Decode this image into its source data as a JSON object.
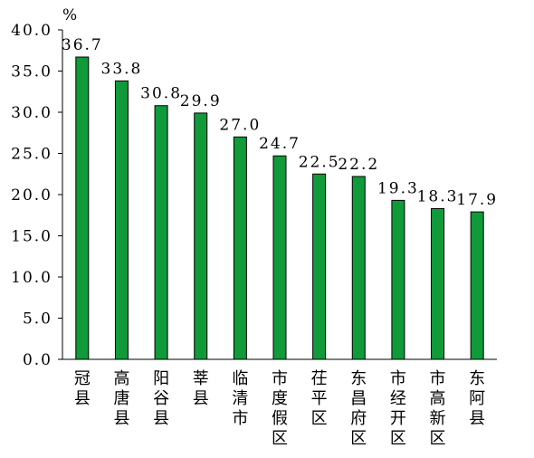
{
  "chart_data": {
    "type": "bar",
    "unit": "%",
    "categories": [
      "冠县",
      "高唐县",
      "阳谷县",
      "莘县",
      "临清市",
      "市度假区",
      "茌平区",
      "东昌府区",
      "市经开区",
      "市高新区",
      "东阿县"
    ],
    "values": [
      36.7,
      33.8,
      30.8,
      29.9,
      27.0,
      24.7,
      22.5,
      22.2,
      19.3,
      18.3,
      17.9
    ],
    "value_labels": [
      "36.7",
      "33.8",
      "30.8",
      "29.9",
      "27.0",
      "24.7",
      "22.5",
      "22.2",
      "19.3",
      "18.3",
      "17.9"
    ],
    "ylim": [
      0,
      40
    ],
    "yticks": [
      "0.0",
      "5.0",
      "10.0",
      "15.0",
      "20.0",
      "25.0",
      "30.0",
      "35.0",
      "40.0"
    ],
    "bar_color": "#109a3a",
    "bar_outline_color": "#000000",
    "grid": false,
    "legend": "none",
    "title": "",
    "xlabel": "",
    "ylabel": ""
  }
}
